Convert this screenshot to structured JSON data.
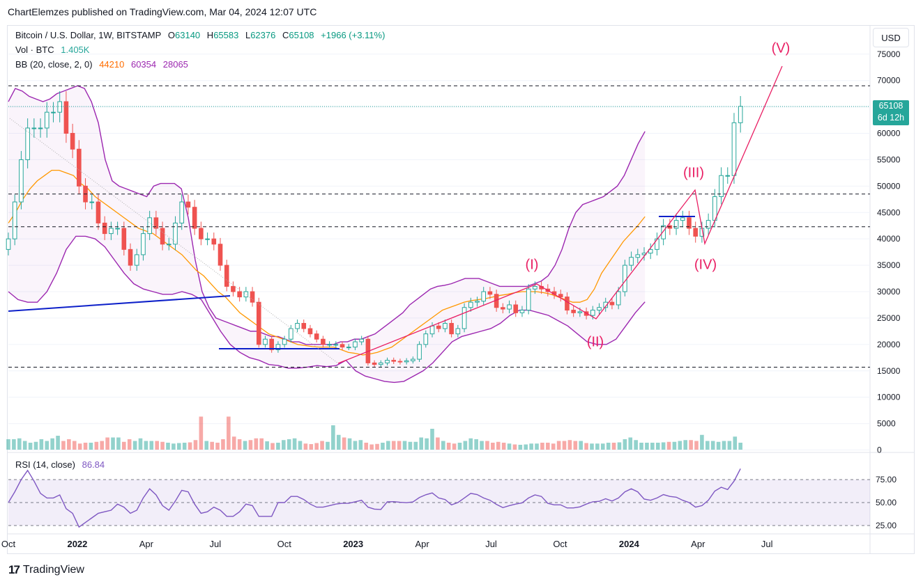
{
  "header": {
    "publisher": "ChartElemzes published on TradingView.com, Mar 04, 2024 12:07 UTC"
  },
  "legend": {
    "symbol": "Bitcoin / U.S. Dollar, 1W, BITSTAMP",
    "o_label": "O",
    "o": "63140",
    "h_label": "H",
    "h": "65583",
    "l_label": "L",
    "l": "62376",
    "c_label": "C",
    "c": "65108",
    "change": "+1966 (+3.11%)",
    "vol_label": "Vol · BTC",
    "vol": "1.405K",
    "bb_label": "BB (20, close, 2, 0)",
    "bb_basis": "44210",
    "bb_upper": "60354",
    "bb_lower": "28065",
    "rsi_label": "RSI (14, close)",
    "rsi_value": "86.84"
  },
  "currency_button": "USD",
  "last_price": {
    "price": "65108",
    "countdown": "6d 12h"
  },
  "footer": {
    "brand": "TradingView",
    "logo": "17"
  },
  "colors": {
    "up": "#26a69a",
    "down": "#ef5350",
    "bb_band": "#9c27b0",
    "bb_basis": "#ff9800",
    "wave": "#e91e63",
    "rsi": "#7e57c2",
    "trend": "#0d20c9"
  },
  "chart_data": {
    "type": "candlestick",
    "title": "Bitcoin / U.S. Dollar, 1W, BITSTAMP",
    "price_axis": {
      "ticks": [
        75000,
        70000,
        65000,
        60000,
        55000,
        50000,
        45000,
        40000,
        35000,
        30000,
        25000,
        20000,
        15000,
        10000,
        5000,
        0
      ],
      "tick_labels": [
        "75000",
        "70000",
        "65000",
        "60000",
        "55000",
        "50000",
        "45000",
        "40000",
        "35000",
        "30000",
        "25000",
        "20000",
        "15000",
        "10000",
        "5000",
        "0"
      ]
    },
    "time_axis": {
      "labels": [
        "Oct",
        "2022",
        "Apr",
        "Jul",
        "Oct",
        "2023",
        "Apr",
        "Jul",
        "Oct",
        "2024",
        "Apr",
        "Jul"
      ],
      "week_index": [
        0,
        13,
        26,
        39,
        52,
        65,
        78,
        91,
        104,
        117,
        130,
        143
      ],
      "bold": [
        false,
        true,
        false,
        false,
        false,
        true,
        false,
        false,
        false,
        true,
        false,
        false
      ]
    },
    "series_closes": [
      40000,
      47000,
      55000,
      61000,
      61000,
      61000,
      64000,
      64000,
      66000,
      60000,
      57000,
      50000,
      47000,
      47000,
      43000,
      41000,
      42000,
      42000,
      38000,
      35000,
      37000,
      41000,
      44000,
      42000,
      39000,
      39000,
      43000,
      47000,
      46000,
      42000,
      40000,
      40000,
      39000,
      35000,
      31000,
      30000,
      29000,
      30000,
      28000,
      20000,
      21000,
      19000,
      20000,
      21000,
      23000,
      24000,
      23000,
      22000,
      21000,
      20000,
      20000,
      20000,
      19500,
      19500,
      20500,
      21000,
      16500,
      16200,
      16500,
      17000,
      16800,
      16700,
      16900,
      17200,
      20000,
      22000,
      23500,
      23000,
      24000,
      22000,
      23000,
      27000,
      28000,
      28200,
      30000,
      29500,
      27000,
      26700,
      27500,
      26000,
      26500,
      30500,
      31000,
      30500,
      30000,
      29500,
      29000,
      26500,
      26000,
      26200,
      25500,
      26500,
      27000,
      28000,
      27500,
      30000,
      35000,
      36500,
      37000,
      37300,
      38000,
      40000,
      42500,
      42000,
      43500,
      44000,
      42000,
      40500,
      42000,
      43500,
      48000,
      52000,
      52000,
      62000,
      65108
    ],
    "bollinger": {
      "basis_weekly": [
        43000,
        45000,
        47500,
        49500,
        51000,
        52000,
        53000,
        53000,
        52500,
        52000,
        50500,
        49500,
        48000,
        47000,
        46000,
        45000,
        44000,
        43000,
        42000,
        41500,
        41000,
        40000,
        39000,
        38000,
        37000,
        35500,
        34000,
        33000,
        31500,
        30000,
        29000,
        27500,
        26000,
        25000,
        24000,
        23000,
        22000,
        21500,
        21000,
        20500,
        20000,
        19800,
        19600,
        19500,
        19500,
        19500,
        19000,
        18500,
        18300,
        18000,
        18200,
        18500,
        19000,
        19500,
        20500,
        21500,
        22500,
        23500,
        24500,
        25500,
        26500,
        27000,
        27500,
        28000,
        28300,
        28500,
        28700,
        29000,
        29300,
        29500,
        29800,
        30000,
        30000,
        30000,
        29800,
        29500,
        29000,
        28500,
        28000,
        28000,
        28500,
        30500,
        33500,
        35500,
        37500,
        39500,
        41000,
        42500,
        44210
      ],
      "upper_weekly": [
        66000,
        68500,
        68000,
        67000,
        66500,
        66000,
        66500,
        67500,
        68000,
        68500,
        69000,
        68500,
        66000,
        62000,
        55000,
        51000,
        50000,
        49500,
        49000,
        48500,
        48000,
        50000,
        50500,
        50500,
        50500,
        49500,
        44000,
        36000,
        30000,
        27000,
        25000,
        24500,
        24000,
        23500,
        23000,
        22500,
        22500,
        22000,
        21500,
        21500,
        21000,
        20500,
        20500,
        20000,
        20000,
        20000,
        20000,
        20000,
        20500,
        20500,
        21000,
        21000,
        21500,
        22000,
        23000,
        24000,
        25000,
        26000,
        27500,
        28500,
        29500,
        30500,
        31000,
        31200,
        31500,
        32000,
        32500,
        32500,
        32500,
        32000,
        31500,
        31000,
        31000,
        31000,
        31000,
        31000,
        31500,
        32000,
        33000,
        35000,
        38000,
        42000,
        45000,
        46500,
        47000,
        47500,
        48000,
        49000,
        50000,
        52000,
        55000,
        58000,
        60354
      ],
      "lower_weekly": [
        30000,
        28500,
        28000,
        28000,
        30000,
        33500,
        38000,
        40500,
        40500,
        40000,
        38500,
        36000,
        33500,
        31500,
        30500,
        30000,
        29500,
        29500,
        30000,
        29500,
        28500,
        25500,
        22500,
        20000,
        18500,
        17500,
        17000,
        16200,
        16000,
        15500,
        15500,
        15700,
        16000,
        15800,
        16000,
        17000,
        15000,
        14000,
        13500,
        13000,
        12800,
        13000,
        14000,
        15000,
        16500,
        18500,
        20500,
        21500,
        22000,
        22500,
        23000,
        24000,
        25500,
        26500,
        26500,
        26000,
        25500,
        24500,
        23500,
        22000,
        20500,
        20000,
        20000,
        21000,
        23500,
        26000,
        28065
      ]
    },
    "volume_thousands": [
      6,
      6,
      6.5,
      5,
      4,
      4.5,
      6,
      5,
      6.5,
      8,
      5,
      6,
      5,
      3.5,
      4,
      4,
      4.5,
      5,
      7,
      7,
      7,
      4.5,
      6,
      5,
      6.5,
      5,
      5,
      5,
      4.5,
      4,
      3.5,
      3.8,
      4,
      4.2,
      5.5,
      19,
      5,
      4.5,
      4,
      6,
      19,
      7.5,
      6,
      5,
      5.5,
      6.5,
      6.5,
      4.8,
      3.8,
      4,
      5.5,
      6,
      6.5,
      5,
      3.5,
      3.2,
      3.8,
      5,
      4.5,
      14,
      8.5,
      7,
      6.5,
      5,
      5.5,
      4,
      3,
      3.3,
      4,
      5,
      5,
      5,
      5,
      4.5,
      4.5,
      7,
      6.5,
      12,
      7,
      5,
      4,
      3.5,
      4,
      5,
      6.5,
      6,
      5,
      5,
      4,
      4.5,
      4,
      3.5,
      3,
      2.8,
      3,
      3.5,
      3.5,
      4,
      4,
      3.5,
      5,
      5,
      5.5,
      5,
      5,
      3.8,
      3.5,
      3.5,
      3.5,
      4,
      4,
      4.2,
      6,
      7,
      5.5,
      4,
      4,
      4,
      4,
      4.2,
      4.5,
      4.5,
      5,
      5.5,
      5.5,
      5,
      8.5,
      5,
      5,
      4.5,
      5,
      5,
      7.5,
      4
    ],
    "rsi": {
      "levels": [
        75,
        50,
        25
      ],
      "tick_labels": [
        "75.00",
        "50.00",
        "25.00"
      ],
      "last": 86.84
    },
    "annotations": {
      "wave_labels": [
        "(I)",
        "(II)",
        "(III)",
        "(IV)",
        "(V)"
      ],
      "horizontal_levels": [
        69000,
        48500,
        42300,
        15700
      ]
    }
  }
}
